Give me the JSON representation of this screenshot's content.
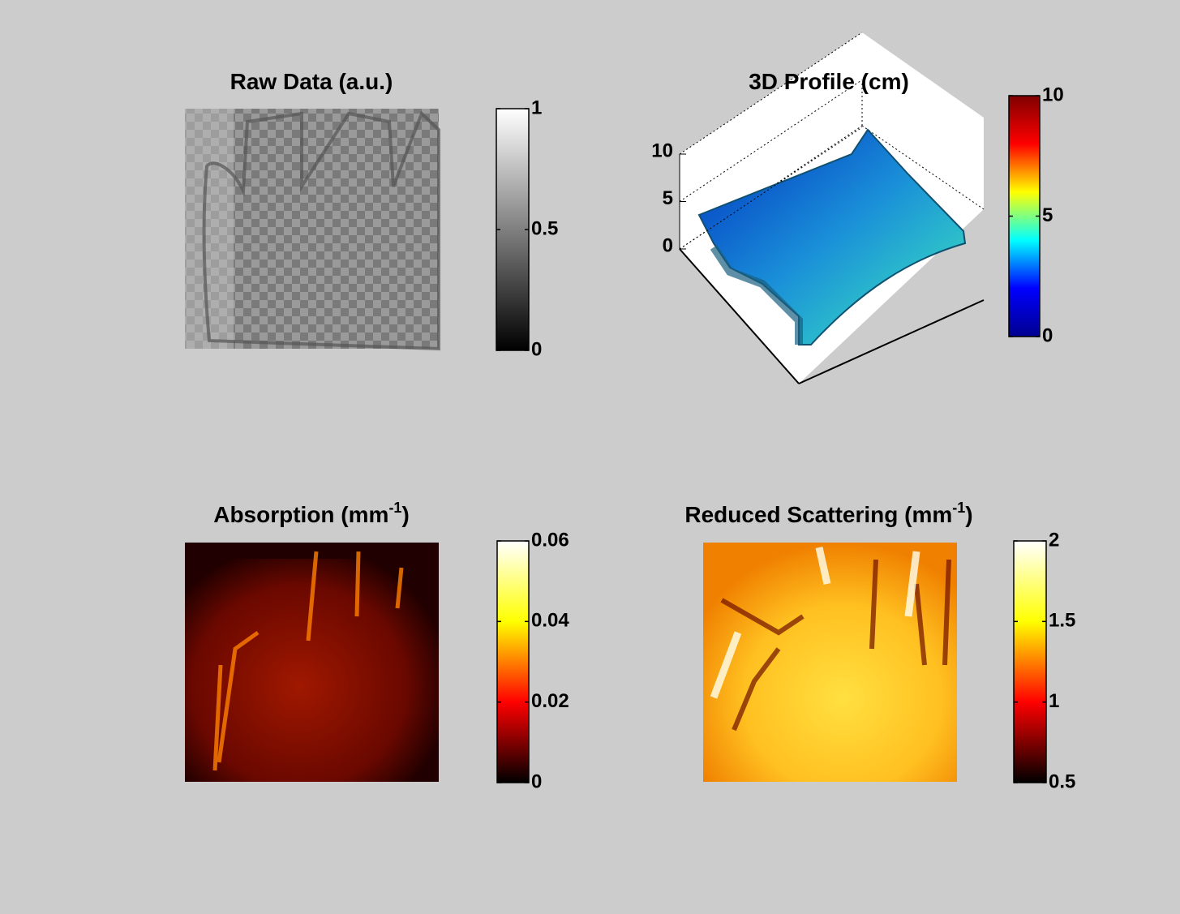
{
  "chart_data": [
    {
      "type": "image",
      "title": [
        "Raw Data (a.u.)"
      ],
      "colormap": "gray",
      "clim": [
        0,
        1
      ],
      "cticks": [
        0,
        0.5,
        1
      ]
    },
    {
      "type": "surface",
      "title": [
        "3D Profile (cm)"
      ],
      "colormap": "jet",
      "clim": [
        0,
        10
      ],
      "cticks": [
        0,
        5,
        10
      ],
      "zlim": [
        0,
        10
      ],
      "zticks": [
        0,
        5,
        10
      ]
    },
    {
      "type": "image",
      "title": [
        "Absorption (mm",
        "-1",
        ")"
      ],
      "colormap": "hot",
      "clim": [
        0,
        0.06
      ],
      "cticks": [
        0,
        0.02,
        0.04,
        0.06
      ]
    },
    {
      "type": "image",
      "title": [
        "Reduced Scattering (mm",
        "-1",
        ")"
      ],
      "colormap": "hot",
      "clim": [
        0.5,
        2
      ],
      "cticks": [
        0.5,
        1,
        1.5,
        2
      ]
    }
  ]
}
